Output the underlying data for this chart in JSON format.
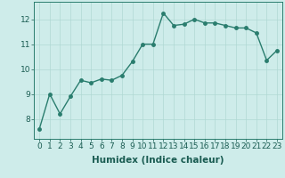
{
  "x": [
    0,
    1,
    2,
    3,
    4,
    5,
    6,
    7,
    8,
    9,
    10,
    11,
    12,
    13,
    14,
    15,
    16,
    17,
    18,
    19,
    20,
    21,
    22,
    23
  ],
  "y": [
    7.6,
    9.0,
    8.2,
    8.9,
    9.55,
    9.45,
    9.6,
    9.55,
    9.75,
    10.3,
    11.0,
    11.0,
    12.25,
    11.75,
    11.8,
    12.0,
    11.85,
    11.85,
    11.75,
    11.65,
    11.65,
    11.45,
    10.35,
    10.75
  ],
  "line_color": "#2a7d6e",
  "marker": "o",
  "marker_size": 2.5,
  "bg_color": "#ceecea",
  "grid_color": "#b0d8d4",
  "xlabel": "Humidex (Indice chaleur)",
  "xlim": [
    -0.5,
    23.5
  ],
  "ylim": [
    7.2,
    12.7
  ],
  "yticks": [
    8,
    9,
    10,
    11,
    12
  ],
  "xtick_labels": [
    "0",
    "1",
    "2",
    "3",
    "4",
    "5",
    "6",
    "7",
    "8",
    "9",
    "10",
    "11",
    "12",
    "13",
    "14",
    "15",
    "16",
    "17",
    "18",
    "19",
    "20",
    "21",
    "22",
    "23"
  ],
  "xlabel_fontsize": 7.5,
  "tick_fontsize": 6.5,
  "line_width": 1.0,
  "text_color": "#1a5c52"
}
